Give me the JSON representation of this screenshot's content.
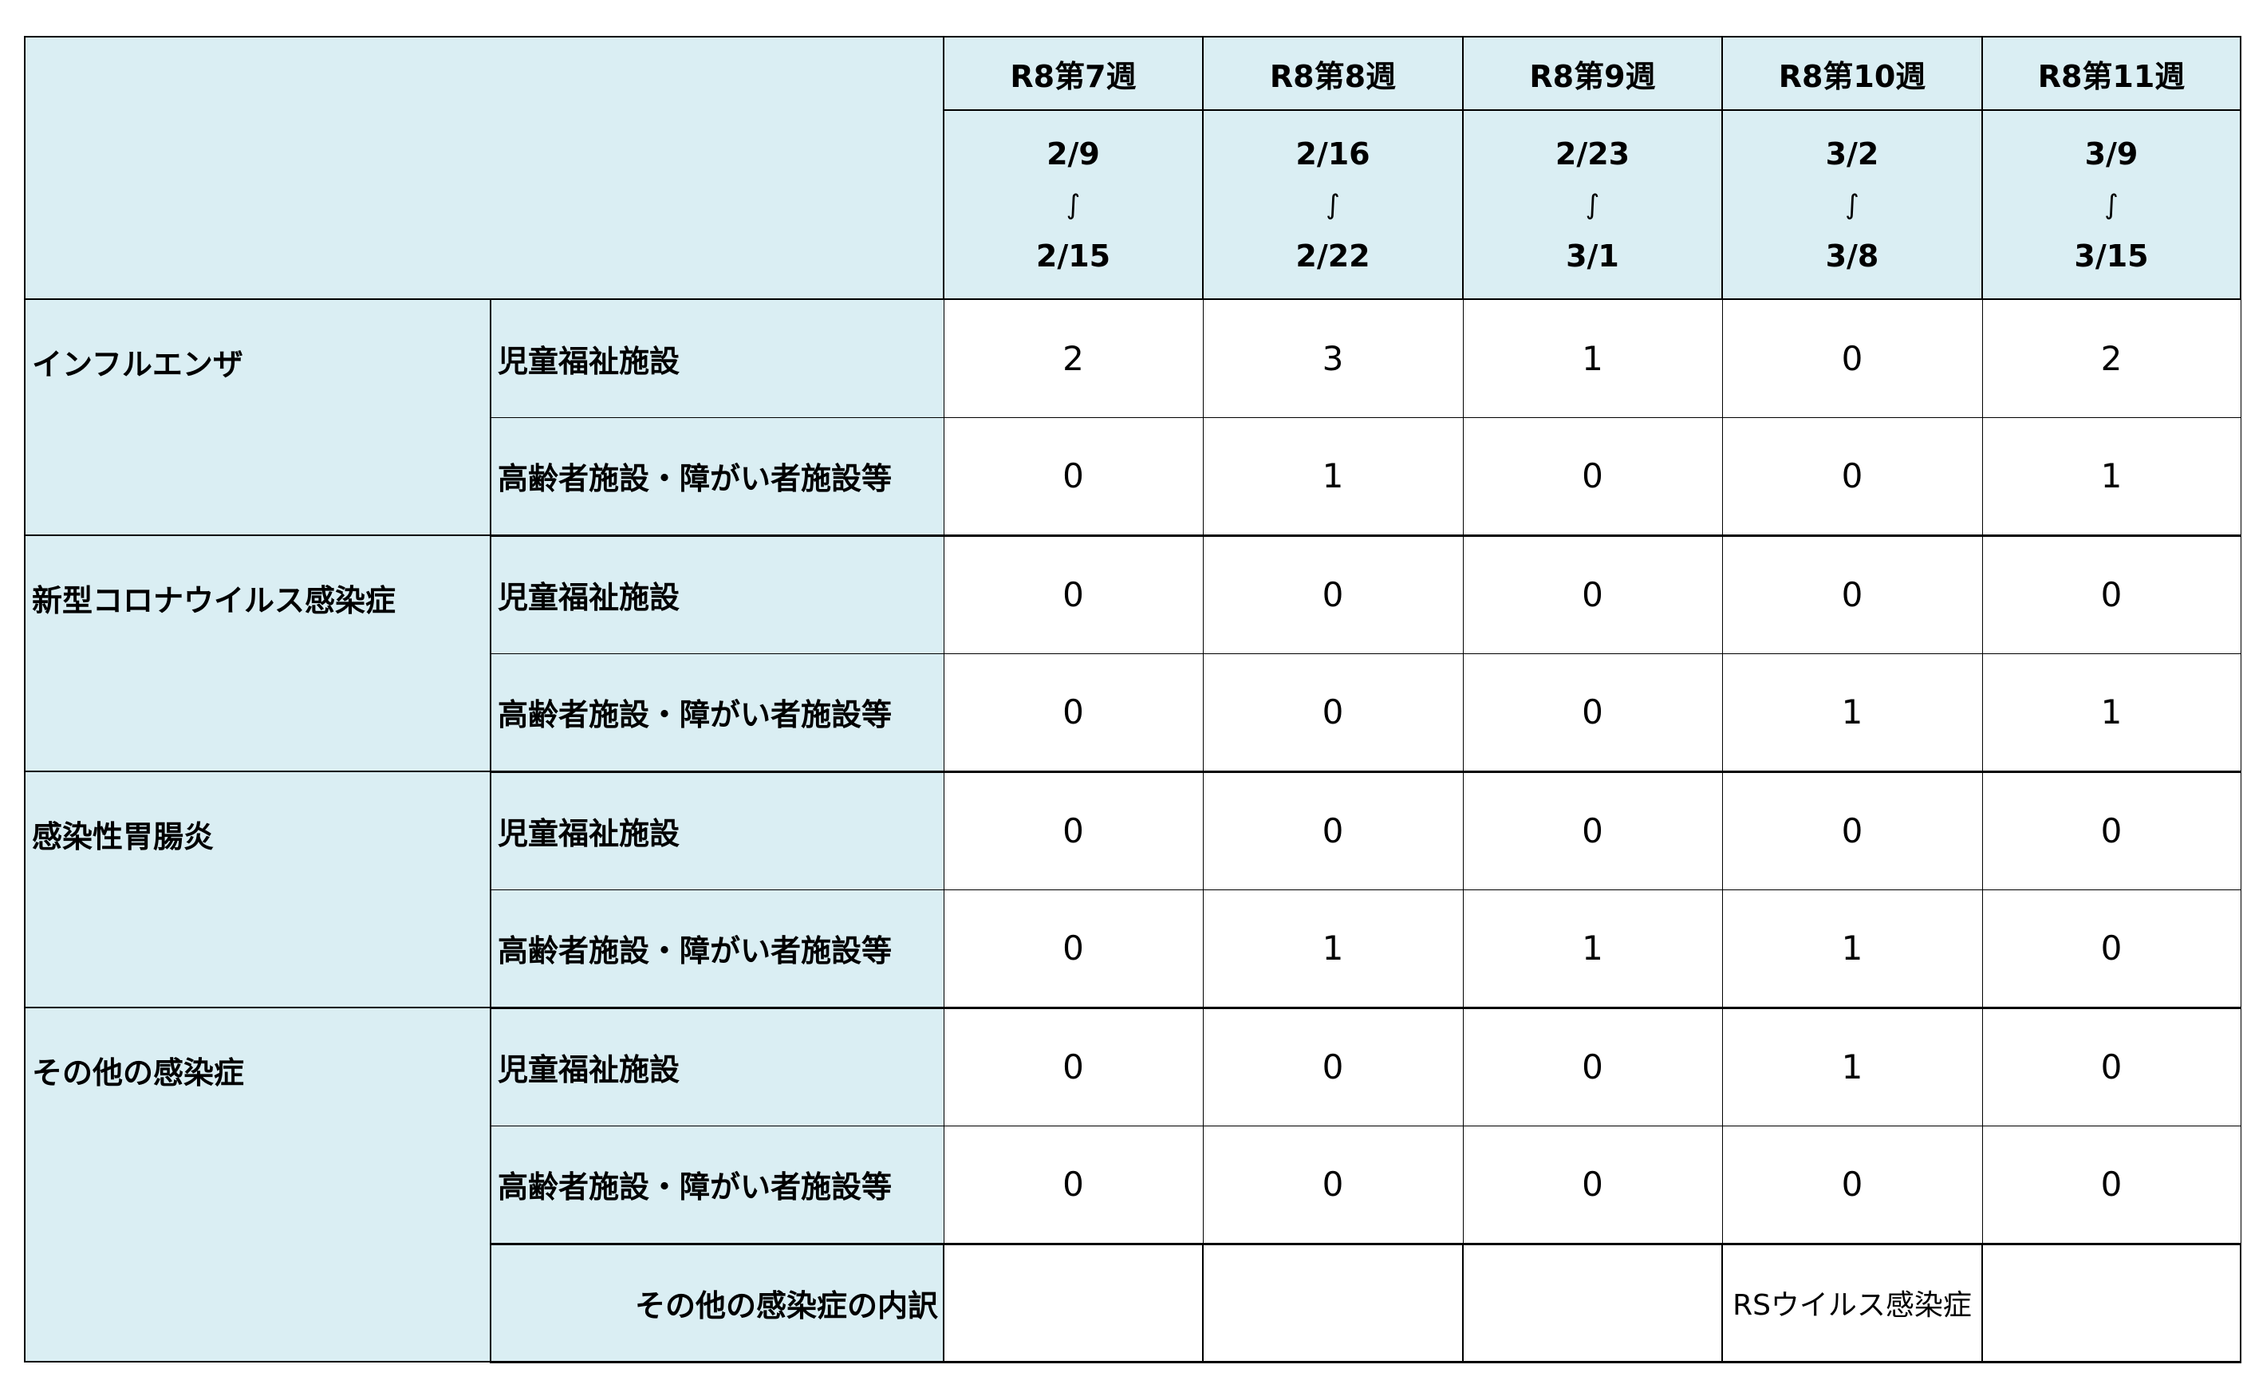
{
  "weeks": [
    {
      "label": "R8第7週",
      "from": "2/9",
      "sep": "∫",
      "to": "2/15"
    },
    {
      "label": "R8第8週",
      "from": "2/16",
      "sep": "∫",
      "to": "2/22"
    },
    {
      "label": "R8第9週",
      "from": "2/23",
      "sep": "∫",
      "to": "3/1"
    },
    {
      "label": "R8第10週",
      "from": "3/2",
      "sep": "∫",
      "to": "3/8"
    },
    {
      "label": "R8第11週",
      "from": "3/9",
      "sep": "∫",
      "to": "3/15"
    }
  ],
  "categories": [
    {
      "name": "インフルエンザ",
      "rows": [
        {
          "facility": "児童福祉施設",
          "values": [
            "2",
            "3",
            "1",
            "0",
            "2"
          ]
        },
        {
          "facility": "高齢者施設・障がい者施設等",
          "values": [
            "0",
            "1",
            "0",
            "0",
            "1"
          ]
        }
      ]
    },
    {
      "name": "新型コロナウイルス感染症",
      "rows": [
        {
          "facility": "児童福祉施設",
          "values": [
            "0",
            "0",
            "0",
            "0",
            "0"
          ]
        },
        {
          "facility": "高齢者施設・障がい者施設等",
          "values": [
            "0",
            "0",
            "0",
            "1",
            "1"
          ]
        }
      ]
    },
    {
      "name": "感染性胃腸炎",
      "rows": [
        {
          "facility": "児童福祉施設",
          "values": [
            "0",
            "0",
            "0",
            "0",
            "0"
          ]
        },
        {
          "facility": "高齢者施設・障がい者施設等",
          "values": [
            "0",
            "1",
            "1",
            "1",
            "0"
          ]
        }
      ]
    },
    {
      "name": "その他の感染症",
      "rows": [
        {
          "facility": "児童福祉施設",
          "values": [
            "0",
            "0",
            "0",
            "1",
            "0"
          ]
        },
        {
          "facility": "高齢者施設・障がい者施設等",
          "values": [
            "0",
            "0",
            "0",
            "0",
            "0"
          ]
        }
      ]
    }
  ],
  "breakdown": {
    "label": "その他の感染症の内訳",
    "values": [
      "",
      "",
      "",
      "RSウイルス感染症",
      ""
    ]
  },
  "colors": {
    "header_bg": "#DAEEF3"
  }
}
